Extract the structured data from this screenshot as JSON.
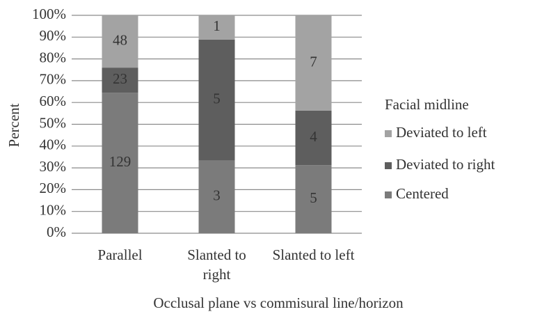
{
  "chart_data": {
    "type": "bar",
    "stacking": "percent",
    "ylabel": "Percent",
    "xlabel": "Occlusal plane vs commisural line/horizon",
    "categories": [
      "Parallel",
      "Slanted to right",
      "Slanted to left"
    ],
    "series": [
      {
        "name": "Centered",
        "color": "#7b7b7b",
        "values": [
          129,
          3,
          5
        ]
      },
      {
        "name": "Deviated to right",
        "color": "#5e5e5e",
        "values": [
          23,
          5,
          4
        ]
      },
      {
        "name": "Deviated to left",
        "color": "#a3a3a3",
        "values": [
          48,
          1,
          7
        ]
      }
    ],
    "ylim": [
      0,
      100
    ],
    "yticks": [
      {
        "value": 0,
        "label": "0%"
      },
      {
        "value": 10,
        "label": "10%"
      },
      {
        "value": 20,
        "label": "20%"
      },
      {
        "value": 30,
        "label": "30%"
      },
      {
        "value": 40,
        "label": "40%"
      },
      {
        "value": 50,
        "label": "50%"
      },
      {
        "value": 60,
        "label": "60%"
      },
      {
        "value": 70,
        "label": "70%"
      },
      {
        "value": 80,
        "label": "80%"
      },
      {
        "value": 90,
        "label": "90%"
      },
      {
        "value": 100,
        "label": "100%"
      }
    ],
    "grid": true,
    "legend": {
      "title": "Facial midline",
      "position": "right"
    }
  }
}
